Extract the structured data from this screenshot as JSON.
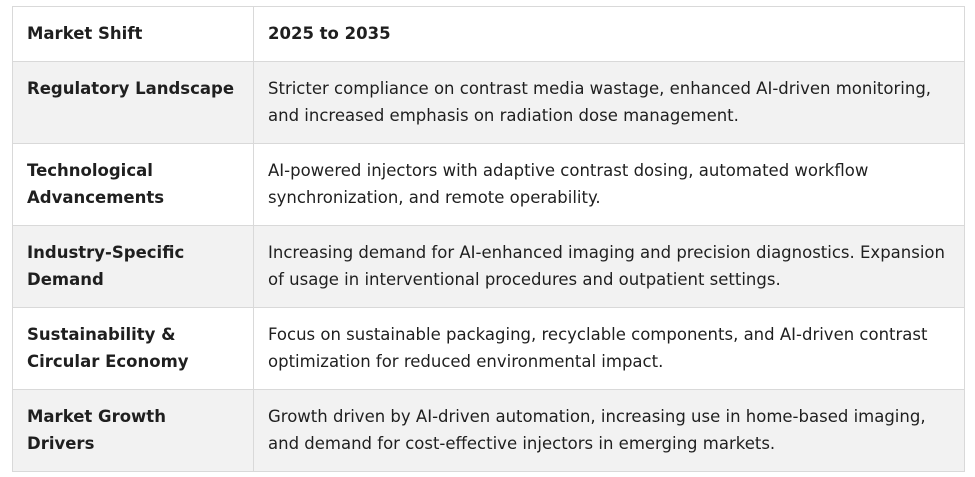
{
  "table": {
    "header": {
      "col1": "Market Shift",
      "col2": "2025 to 2035"
    },
    "rows": [
      {
        "label": "Regulatory Landscape",
        "text": "Stricter compliance on contrast media wastage, enhanced AI-driven monitoring, and increased emphasis on radiation dose management."
      },
      {
        "label": "Technological Advancements",
        "text": "AI-powered injectors with adaptive contrast dosing, automated workflow synchronization, and remote operability."
      },
      {
        "label": "Industry-Specific Demand",
        "text": "Increasing demand for AI-enhanced imaging and precision diagnostics. Expansion of usage in interventional procedures and outpatient settings."
      },
      {
        "label": "Sustainability & Circular Economy",
        "text": "Focus on sustainable packaging, recyclable components, and AI-driven contrast optimization for reduced environmental impact."
      },
      {
        "label": "Market Growth Drivers",
        "text": "Growth driven by AI-driven automation, increasing use in home-based imaging, and demand for cost-effective injectors in emerging markets."
      }
    ]
  }
}
